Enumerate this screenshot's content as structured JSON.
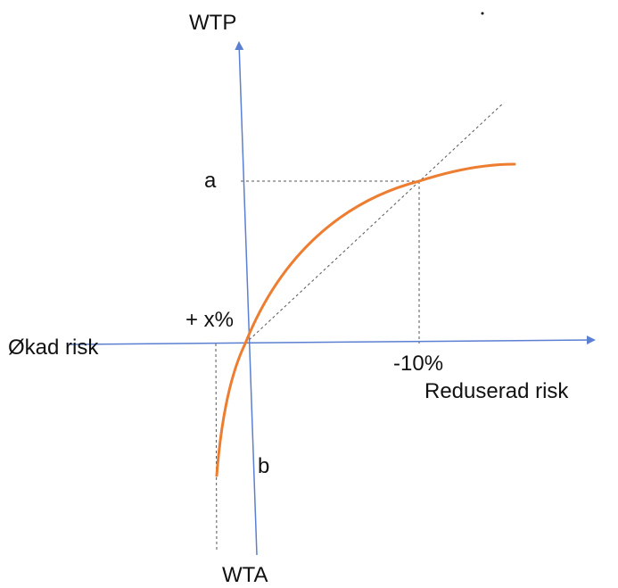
{
  "labels": {
    "y_top": "WTP",
    "y_bottom": "WTA",
    "x_left": "Økad risk",
    "x_right": "Reduserad risk",
    "point_a": "a",
    "point_b": "b",
    "x_marker_left": "+ x%",
    "x_marker_right": "-10%"
  },
  "colors": {
    "axis": "#5b7fd1",
    "curve": "#ed7d31",
    "guide": "#555555",
    "text": "#111111"
  }
}
